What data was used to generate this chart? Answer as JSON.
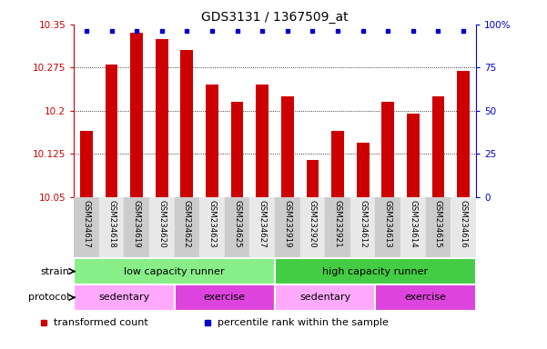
{
  "title": "GDS3131 / 1367509_at",
  "samples": [
    "GSM234617",
    "GSM234618",
    "GSM234619",
    "GSM234620",
    "GSM234622",
    "GSM234623",
    "GSM234625",
    "GSM234627",
    "GSM232919",
    "GSM232920",
    "GSM232921",
    "GSM234612",
    "GSM234613",
    "GSM234614",
    "GSM234615",
    "GSM234616"
  ],
  "bar_values": [
    10.165,
    10.28,
    10.335,
    10.325,
    10.305,
    10.245,
    10.215,
    10.245,
    10.225,
    10.115,
    10.165,
    10.145,
    10.215,
    10.195,
    10.225,
    10.27
  ],
  "ymin": 10.05,
  "ymax": 10.35,
  "yticks": [
    10.05,
    10.125,
    10.2,
    10.275,
    10.35
  ],
  "ytick_labels": [
    "10.05",
    "10.125",
    "10.2",
    "10.275",
    "10.35"
  ],
  "y2ticks": [
    0,
    25,
    50,
    75,
    100
  ],
  "y2tick_labels": [
    "0",
    "25",
    "50",
    "75",
    "100%"
  ],
  "bar_color": "#cc0000",
  "dot_color": "#0000cc",
  "left_axis_color": "#cc0000",
  "right_axis_color": "#0000cc",
  "strain_groups": [
    {
      "label": "low capacity runner",
      "start": 0,
      "end": 8,
      "color": "#88ee88"
    },
    {
      "label": "high capacity runner",
      "start": 8,
      "end": 16,
      "color": "#44cc44"
    }
  ],
  "protocol_groups": [
    {
      "label": "sedentary",
      "start": 0,
      "end": 4,
      "color": "#ffaaff"
    },
    {
      "label": "exercise",
      "start": 4,
      "end": 8,
      "color": "#dd44dd"
    },
    {
      "label": "sedentary",
      "start": 8,
      "end": 12,
      "color": "#ffaaff"
    },
    {
      "label": "exercise",
      "start": 12,
      "end": 16,
      "color": "#dd44dd"
    }
  ],
  "legend_items": [
    {
      "label": "transformed count",
      "color": "#cc0000"
    },
    {
      "label": "percentile rank within the sample",
      "color": "#0000cc"
    }
  ]
}
